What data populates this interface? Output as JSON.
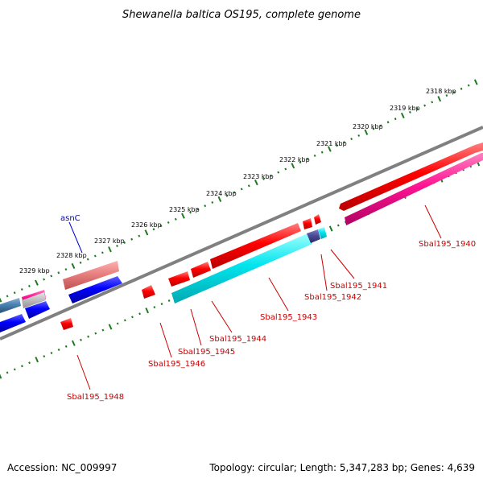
{
  "title": "Shewanella baltica OS195, complete genome",
  "footer": {
    "accession": "Accession: NC_009997",
    "summary": "Topology: circular; Length: 5,347,283 bp; Genes: 4,639"
  },
  "kbp_labels": [
    "2318 kbp",
    "2319 kbp",
    "2320 kbp",
    "2321 kbp",
    "2322 kbp",
    "2323 kbp",
    "2324 kbp",
    "2325 kbp",
    "2326 kbp",
    "2327 kbp",
    "2328 kbp",
    "2329 kbp"
  ],
  "gene_labels": [
    "asnC",
    "Sbal195_1940",
    "Sbal195_1941",
    "Sbal195_1942",
    "Sbal195_1943",
    "Sbal195_1944",
    "Sbal195_1945",
    "Sbal195_1946",
    "Sbal195_1948"
  ],
  "colors": {
    "backbone": "#808080",
    "ticks": "#1f7a1f",
    "forward_gene": "#ff0000",
    "reverse_gene": "#0000ff",
    "rna": "#00e5ee",
    "pseudo": "#ff1493",
    "label": "#cc0000"
  }
}
